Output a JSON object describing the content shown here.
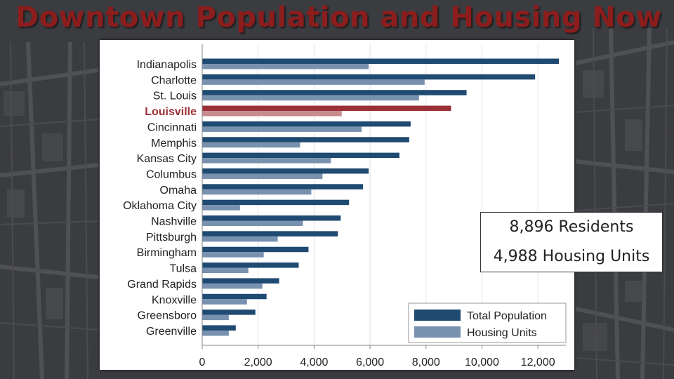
{
  "slide": {
    "title": "Downtown Population and Housing Now",
    "callout_residents": "8,896 Residents",
    "callout_housing": "4,988 Housing Units"
  },
  "colors": {
    "title": "#8c1d1d",
    "total_population": "#1f4a72",
    "housing_units": "#7891ae",
    "highlight_total": "#9b3038",
    "highlight_housing": "#c98a8e",
    "highlight_label": "#9b3038"
  },
  "chart_data": {
    "type": "bar",
    "orientation": "horizontal",
    "title": "",
    "xlabel": "",
    "ylabel": "",
    "xlim": [
      0,
      13000
    ],
    "x_ticks": [
      0,
      2000,
      4000,
      6000,
      8000,
      10000,
      12000
    ],
    "x_tick_labels": [
      "0",
      "2,000",
      "4,000",
      "6,000",
      "8,000",
      "10,000",
      "12,000"
    ],
    "grid": true,
    "legend_position": "bottom-right",
    "highlight_category": "Louisville",
    "categories": [
      "Indianapolis",
      "Charlotte",
      "St. Louis",
      "Louisville",
      "Cincinnati",
      "Memphis",
      "Kansas City",
      "Columbus",
      "Omaha",
      "Oklahoma City",
      "Nashville",
      "Pittsburgh",
      "Birmingham",
      "Tulsa",
      "Grand Rapids",
      "Knoxville",
      "Greensboro",
      "Greenville"
    ],
    "series": [
      {
        "name": "Total Population",
        "values": [
          12750,
          11900,
          9450,
          8896,
          7450,
          7400,
          7050,
          5950,
          5750,
          5250,
          4950,
          4850,
          3800,
          3450,
          2750,
          2300,
          1900,
          1200
        ]
      },
      {
        "name": "Housing Units",
        "values": [
          5950,
          7950,
          7750,
          4988,
          5700,
          3500,
          4600,
          4300,
          3900,
          1350,
          3600,
          2700,
          2200,
          1650,
          2150,
          1600,
          950,
          950
        ]
      }
    ]
  }
}
